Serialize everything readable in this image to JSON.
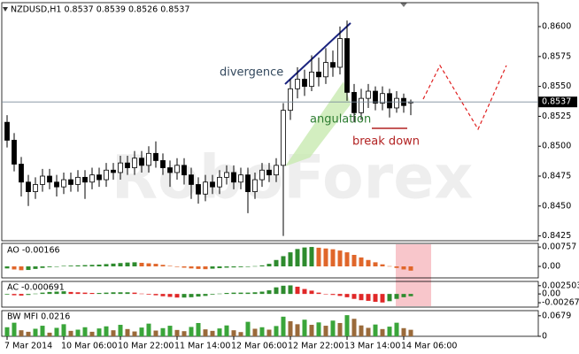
{
  "watermark": "RoboForex",
  "chart_data": [
    {
      "type": "candlestick",
      "title": "NZDUSD,H1  0.8537 0.8539 0.8526 0.8537",
      "categories": [
        "7 Mar 2014",
        null,
        null,
        null,
        null,
        null,
        null,
        null,
        "10 Mar 06:00",
        null,
        null,
        null,
        null,
        null,
        null,
        null,
        "10 Mar 22:00",
        null,
        null,
        null,
        null,
        null,
        null,
        null,
        "11 Mar 14:00",
        null,
        null,
        null,
        null,
        null,
        null,
        null,
        "12 Mar 06:00",
        null,
        null,
        null,
        null,
        null,
        null,
        null,
        "12 Mar 22:00",
        null,
        null,
        null,
        null,
        null,
        null,
        null,
        "13 Mar 14:00",
        null,
        null,
        null,
        null,
        null,
        null,
        null,
        "14 Mar 06:00",
        null
      ],
      "open": [
        0.852,
        0.8505,
        0.8485,
        0.847,
        0.8462,
        0.8468,
        0.8475,
        0.847,
        0.8466,
        0.8472,
        0.8468,
        0.8474,
        0.847,
        0.8476,
        0.8472,
        0.848,
        0.8478,
        0.8486,
        0.8482,
        0.849,
        0.8484,
        0.8494,
        0.8488,
        0.8482,
        0.8478,
        0.8484,
        0.8476,
        0.8468,
        0.846,
        0.847,
        0.8466,
        0.8474,
        0.8478,
        0.847,
        0.8476,
        0.8462,
        0.8472,
        0.848,
        0.8476,
        0.8484,
        0.853,
        0.8548,
        0.8556,
        0.855,
        0.8562,
        0.8558,
        0.857,
        0.8566,
        0.859,
        0.8545,
        0.8528,
        0.854,
        0.8546,
        0.8536,
        0.8544,
        0.8532,
        0.854,
        0.8537
      ],
      "high": [
        0.8526,
        0.8511,
        0.8491,
        0.8476,
        0.8474,
        0.8481,
        0.8481,
        0.8476,
        0.8478,
        0.8478,
        0.848,
        0.848,
        0.8482,
        0.8482,
        0.8486,
        0.8486,
        0.8492,
        0.8492,
        0.8496,
        0.8496,
        0.85,
        0.8504,
        0.8494,
        0.8488,
        0.849,
        0.849,
        0.8482,
        0.8474,
        0.8476,
        0.8476,
        0.848,
        0.8484,
        0.8484,
        0.8482,
        0.8482,
        0.8478,
        0.8486,
        0.8486,
        0.849,
        0.8536,
        0.8556,
        0.8566,
        0.8564,
        0.8576,
        0.8574,
        0.8582,
        0.858,
        0.86,
        0.8605,
        0.8552,
        0.8548,
        0.8552,
        0.855,
        0.855,
        0.8548,
        0.8546,
        0.8544,
        0.8539
      ],
      "low": [
        0.8499,
        0.8479,
        0.8458,
        0.845,
        0.8456,
        0.8462,
        0.8464,
        0.8458,
        0.846,
        0.8462,
        0.8462,
        0.8456,
        0.8464,
        0.8466,
        0.8466,
        0.8472,
        0.8472,
        0.8476,
        0.8476,
        0.8478,
        0.8478,
        0.8482,
        0.8476,
        0.8466,
        0.8472,
        0.8468,
        0.8456,
        0.8452,
        0.8454,
        0.846,
        0.846,
        0.8468,
        0.8464,
        0.8464,
        0.8444,
        0.8456,
        0.8466,
        0.847,
        0.847,
        0.8425,
        0.8522,
        0.854,
        0.8542,
        0.8546,
        0.855,
        0.8552,
        0.8558,
        0.856,
        0.8538,
        0.852,
        0.8522,
        0.8532,
        0.853,
        0.853,
        0.8524,
        0.8528,
        0.8528,
        0.8526
      ],
      "close": [
        0.8505,
        0.8485,
        0.847,
        0.8462,
        0.8468,
        0.8475,
        0.847,
        0.8466,
        0.8472,
        0.8468,
        0.8474,
        0.847,
        0.8476,
        0.8472,
        0.848,
        0.8478,
        0.8486,
        0.8482,
        0.849,
        0.8484,
        0.8494,
        0.8488,
        0.8482,
        0.8478,
        0.8484,
        0.8476,
        0.8468,
        0.846,
        0.847,
        0.8466,
        0.8474,
        0.8478,
        0.847,
        0.8476,
        0.8462,
        0.8472,
        0.848,
        0.8476,
        0.8484,
        0.853,
        0.8548,
        0.8556,
        0.855,
        0.8562,
        0.8558,
        0.857,
        0.8566,
        0.859,
        0.8545,
        0.8528,
        0.854,
        0.8546,
        0.8536,
        0.8544,
        0.8532,
        0.854,
        0.8534,
        0.8537
      ],
      "up_color": "#ffffff",
      "down_color": "#000000",
      "ylim": [
        0.8421,
        0.862
      ],
      "yticks": [
        {
          "value": 0.86,
          "label": "0.8600"
        },
        0.8575,
        {
          "value": 0.855,
          "label": "0.8550"
        },
        0.8525,
        {
          "value": 0.85,
          "label": "0.8500"
        },
        0.8475,
        {
          "value": 0.845,
          "label": "0.8450"
        },
        0.8425
      ],
      "last_price": 0.8537,
      "annotations": [
        {
          "text": "divergence",
          "color": "#34495e"
        },
        {
          "text": "angulation",
          "color": "#2e7d32"
        },
        {
          "text": "break down",
          "color": "#b22222"
        }
      ]
    },
    {
      "type": "histogram",
      "title": "AO -0.00166",
      "values": [
        -0.0008,
        -0.0012,
        -0.0015,
        -0.0014,
        -0.001,
        -0.0006,
        -0.0003,
        -0.0001,
        0.0002,
        0.0003,
        0.0004,
        0.0005,
        0.0006,
        0.0007,
        0.0009,
        0.0011,
        0.0013,
        0.0015,
        0.0016,
        0.0014,
        0.0012,
        0.001,
        0.0006,
        0.0002,
        -0.0002,
        -0.0005,
        -0.0008,
        -0.001,
        -0.0011,
        -0.0009,
        -0.0007,
        -0.0005,
        -0.0004,
        -0.0003,
        -0.0002,
        0.0001,
        0.0004,
        0.001,
        0.0025,
        0.004,
        0.0055,
        0.0068,
        0.0074,
        0.0076,
        0.0073,
        0.007,
        0.0067,
        0.0062,
        0.0055,
        0.0045,
        0.0035,
        0.0025,
        0.0016,
        0.0008,
        0.0001,
        -0.0006,
        -0.0012,
        -0.00166
      ],
      "up_color": "#2e8b2e",
      "down_color": "#e0662a",
      "ylim": [
        -0.0045,
        0.009
      ],
      "yticks": [
        0.00757,
        {
          "value": 0,
          "label": "0.00"
        }
      ]
    },
    {
      "type": "histogram",
      "title": "AC -0.000691",
      "values": [
        -0.0002,
        -0.0004,
        -0.0005,
        -0.0003,
        0.0001,
        0.0004,
        0.0006,
        0.0007,
        0.0008,
        0.0006,
        0.0005,
        0.0004,
        0.0003,
        0.0003,
        0.0004,
        0.0005,
        0.0005,
        0.0005,
        0.0004,
        0.0001,
        -0.0002,
        -0.0004,
        -0.0007,
        -0.0009,
        -0.0011,
        -0.0011,
        -0.001,
        -0.0008,
        -0.0006,
        -0.0002,
        0.0001,
        0.0003,
        0.0004,
        0.0004,
        0.0004,
        0.0005,
        0.0007,
        0.0011,
        0.002,
        0.0025,
        0.0026,
        0.0022,
        0.0015,
        0.001,
        0.0004,
        -0.0001,
        -0.0003,
        -0.0006,
        -0.001,
        -0.0015,
        -0.0019,
        -0.0021,
        -0.0024,
        -0.0026,
        -0.0022,
        -0.0015,
        -0.001,
        -0.000691
      ],
      "up_color": "#2e8b2e",
      "down_color": "#e02828",
      "ylim": [
        -0.004,
        0.0038
      ],
      "yticks": [
        0.002503,
        {
          "value": 0,
          "label": "0.00"
        },
        -0.00267
      ]
    },
    {
      "type": "histogram",
      "title": "BW MFI 0.0216",
      "values": [
        0.03,
        0.045,
        0.02,
        0.015,
        0.025,
        0.035,
        0.012,
        0.028,
        0.04,
        0.018,
        0.022,
        0.03,
        0.015,
        0.026,
        0.033,
        0.02,
        0.038,
        0.024,
        0.016,
        0.029,
        0.042,
        0.019,
        0.027,
        0.035,
        0.021,
        0.017,
        0.031,
        0.044,
        0.023,
        0.018,
        0.026,
        0.036,
        0.02,
        0.014,
        0.048,
        0.025,
        0.03,
        0.022,
        0.034,
        0.065,
        0.05,
        0.04,
        0.055,
        0.038,
        0.046,
        0.035,
        0.052,
        0.044,
        0.07,
        0.058,
        0.036,
        0.028,
        0.039,
        0.024,
        0.032,
        0.045,
        0.027,
        0.0216
      ],
      "up_color": "#3aa53a",
      "down_color": "#9a6a3a",
      "ylim": [
        0,
        0.085
      ],
      "yticks": [
        0.0679,
        0
      ]
    }
  ]
}
